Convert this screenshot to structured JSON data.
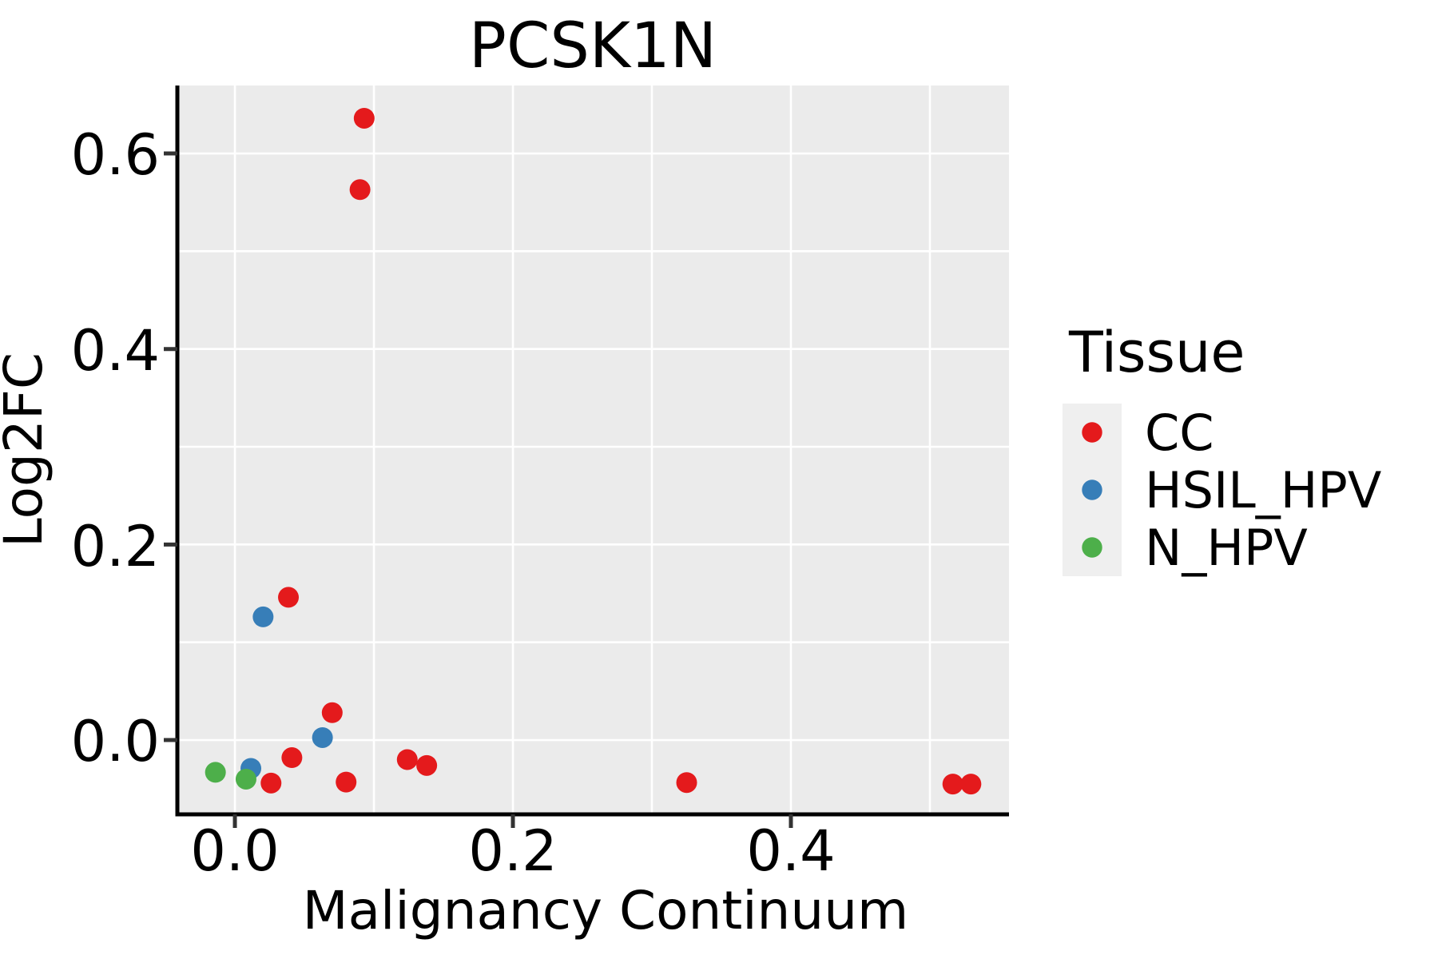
{
  "title": "PCSK1N",
  "axes": {
    "x": {
      "label": "Malignancy Continuum",
      "ticks": [
        {
          "value": 0.0,
          "label": "0.0"
        },
        {
          "value": 0.2,
          "label": "0.2"
        },
        {
          "value": 0.4,
          "label": "0.4"
        }
      ]
    },
    "y": {
      "label": "Log2FC",
      "ticks": [
        {
          "value": 0.0,
          "label": "0.0"
        },
        {
          "value": 0.2,
          "label": "0.2"
        },
        {
          "value": 0.4,
          "label": "0.4"
        },
        {
          "value": 0.6,
          "label": "0.6"
        }
      ]
    }
  },
  "legend": {
    "title": "Tissue",
    "entries": [
      {
        "label": "CC",
        "color": "#e41a1c"
      },
      {
        "label": "HSIL_HPV",
        "color": "#377eb8"
      },
      {
        "label": "N_HPV",
        "color": "#4daf4a"
      }
    ]
  },
  "colors": {
    "plot_bg": "#ebebeb",
    "grid": "#ffffff",
    "legend_key_bg": "#efefef",
    "spine": "#000000",
    "tick_mark": "#333333"
  },
  "chart_data": {
    "type": "scatter",
    "title": "PCSK1N",
    "xlabel": "Malignancy Continuum",
    "ylabel": "Log2FC",
    "xlim": [
      -0.0414,
      0.5569
    ],
    "ylim": [
      -0.076,
      0.6695
    ],
    "grid": "on",
    "grid_x": [
      0.0,
      0.1,
      0.2,
      0.3,
      0.4,
      0.5
    ],
    "grid_y": [
      0.0,
      0.1,
      0.2,
      0.3,
      0.4,
      0.5,
      0.6
    ],
    "legend_position": "right",
    "marker_radius": 13,
    "series": [
      {
        "name": "CC",
        "color": "#e41a1c",
        "points": [
          [
            0.093,
            0.636
          ],
          [
            0.09,
            0.563
          ],
          [
            0.0385,
            0.146
          ],
          [
            0.07,
            0.028
          ],
          [
            0.026,
            -0.044
          ],
          [
            0.041,
            -0.018
          ],
          [
            0.08,
            -0.043
          ],
          [
            0.124,
            -0.02
          ],
          [
            0.138,
            -0.026
          ],
          [
            0.325,
            -0.0435
          ],
          [
            0.5165,
            -0.045
          ],
          [
            0.5295,
            -0.045
          ]
        ]
      },
      {
        "name": "HSIL_HPV",
        "color": "#377eb8",
        "points": [
          [
            0.0115,
            -0.029
          ],
          [
            0.0203,
            0.126
          ],
          [
            0.063,
            0.0025
          ]
        ]
      },
      {
        "name": "N_HPV",
        "color": "#4daf4a",
        "points": [
          [
            -0.014,
            -0.033
          ],
          [
            0.008,
            -0.04
          ]
        ]
      }
    ]
  }
}
